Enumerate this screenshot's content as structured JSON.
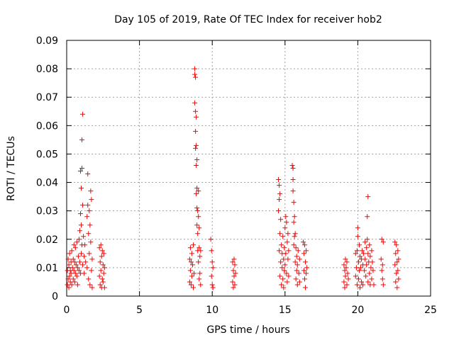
{
  "chart_data": {
    "type": "scatter",
    "title": "Day 105 of 2019, Rate Of TEC Index for receiver hob2",
    "xlabel": "GPS time / hours",
    "ylabel": "ROTI / TECUs",
    "xlim": [
      0,
      25
    ],
    "ylim": [
      0,
      0.09
    ],
    "x_ticks": [
      0,
      5,
      10,
      15,
      20,
      25
    ],
    "y_ticks": [
      0,
      0.01,
      0.02,
      0.03,
      0.04,
      0.05,
      0.06,
      0.07,
      0.08,
      0.09
    ],
    "x_tick_labels": [
      "0",
      "5",
      "10",
      "15",
      "20",
      "25"
    ],
    "y_tick_labels": [
      "0",
      "0.01",
      "0.02",
      "0.03",
      "0.04",
      "0.05",
      "0.06",
      "0.07",
      "0.08",
      "0.09"
    ],
    "grid": true,
    "marker": "+",
    "marker_color": "#ff0000",
    "series": [
      {
        "points": [
          [
            0.05,
            0.004
          ],
          [
            0.05,
            0.009
          ],
          [
            0.1,
            0.013
          ],
          [
            0.1,
            0.006
          ],
          [
            0.15,
            0.011
          ],
          [
            0.15,
            0.003
          ],
          [
            0.2,
            0.007
          ],
          [
            0.2,
            0.015
          ],
          [
            0.25,
            0.009
          ],
          [
            0.25,
            0.005
          ],
          [
            0.3,
            0.012
          ],
          [
            0.3,
            0.008
          ],
          [
            0.35,
            0.016
          ],
          [
            0.35,
            0.004
          ],
          [
            0.4,
            0.01
          ],
          [
            0.45,
            0.013
          ],
          [
            0.45,
            0.006
          ],
          [
            0.5,
            0.018
          ],
          [
            0.5,
            0.009
          ],
          [
            0.55,
            0.012
          ],
          [
            0.55,
            0.005
          ],
          [
            0.6,
            0.017
          ],
          [
            0.6,
            0.008
          ],
          [
            0.65,
            0.011
          ],
          [
            0.7,
            0.019
          ],
          [
            0.7,
            0.007
          ],
          [
            0.75,
            0.01
          ],
          [
            0.75,
            0.004
          ],
          [
            0.8,
            0.014
          ],
          [
            0.85,
            0.02
          ],
          [
            0.85,
            0.009
          ],
          [
            0.9,
            0.023
          ],
          [
            0.9,
            0.012
          ],
          [
            0.95,
            0.029
          ],
          [
            0.95,
            0.008
          ],
          [
            0.95,
            0.044
          ],
          [
            1.0,
            0.038
          ],
          [
            1.0,
            0.015
          ],
          [
            1.0,
            0.025
          ],
          [
            1.05,
            0.045
          ],
          [
            1.05,
            0.055
          ],
          [
            1.05,
            0.018
          ],
          [
            1.1,
            0.064
          ],
          [
            1.1,
            0.032
          ],
          [
            1.1,
            0.011
          ],
          [
            1.15,
            0.021
          ],
          [
            1.2,
            0.014
          ],
          [
            1.2,
            0.008
          ],
          [
            1.25,
            0.018
          ],
          [
            1.3,
            0.012
          ],
          [
            1.4,
            0.028
          ],
          [
            1.4,
            0.01
          ],
          [
            1.45,
            0.043
          ],
          [
            1.45,
            0.032
          ],
          [
            1.5,
            0.022
          ],
          [
            1.5,
            0.006
          ],
          [
            1.55,
            0.03
          ],
          [
            1.55,
            0.015
          ],
          [
            1.6,
            0.025
          ],
          [
            1.6,
            0.004
          ],
          [
            1.65,
            0.037
          ],
          [
            1.65,
            0.019
          ],
          [
            1.7,
            0.034
          ],
          [
            1.7,
            0.009
          ],
          [
            1.75,
            0.013
          ],
          [
            1.75,
            0.003
          ],
          [
            2.25,
            0.017
          ],
          [
            2.25,
            0.007
          ],
          [
            2.3,
            0.012
          ],
          [
            2.3,
            0.004
          ],
          [
            2.35,
            0.018
          ],
          [
            2.35,
            0.009
          ],
          [
            2.4,
            0.014
          ],
          [
            2.4,
            0.003
          ],
          [
            2.45,
            0.016
          ],
          [
            2.45,
            0.006
          ],
          [
            2.5,
            0.011
          ],
          [
            2.5,
            0.005
          ],
          [
            2.55,
            0.015
          ],
          [
            2.55,
            0.008
          ],
          [
            2.6,
            0.01
          ],
          [
            2.6,
            0.003
          ],
          [
            8.45,
            0.013
          ],
          [
            8.45,
            0.005
          ],
          [
            8.5,
            0.017
          ],
          [
            8.5,
            0.009
          ],
          [
            8.55,
            0.012
          ],
          [
            8.55,
            0.004
          ],
          [
            8.6,
            0.015
          ],
          [
            8.6,
            0.007
          ],
          [
            8.65,
            0.011
          ],
          [
            8.7,
            0.018
          ],
          [
            8.7,
            0.003
          ],
          [
            8.75,
            0.008
          ],
          [
            8.8,
            0.08
          ],
          [
            8.8,
            0.078
          ],
          [
            8.8,
            0.068
          ],
          [
            8.85,
            0.077
          ],
          [
            8.85,
            0.065
          ],
          [
            8.85,
            0.058
          ],
          [
            8.85,
            0.052
          ],
          [
            8.9,
            0.063
          ],
          [
            8.9,
            0.053
          ],
          [
            8.9,
            0.046
          ],
          [
            8.9,
            0.036
          ],
          [
            8.95,
            0.048
          ],
          [
            8.95,
            0.038
          ],
          [
            8.95,
            0.031
          ],
          [
            8.95,
            0.025
          ],
          [
            9.0,
            0.03
          ],
          [
            9.0,
            0.022
          ],
          [
            9.0,
            0.016
          ],
          [
            9.05,
            0.037
          ],
          [
            9.05,
            0.028
          ],
          [
            9.05,
            0.012
          ],
          [
            9.1,
            0.024
          ],
          [
            9.1,
            0.017
          ],
          [
            9.1,
            0.006
          ],
          [
            9.15,
            0.014
          ],
          [
            9.15,
            0.008
          ],
          [
            9.2,
            0.016
          ],
          [
            9.2,
            0.004
          ],
          [
            9.9,
            0.02
          ],
          [
            9.95,
            0.016
          ],
          [
            9.95,
            0.007
          ],
          [
            10.0,
            0.012
          ],
          [
            10.0,
            0.004
          ],
          [
            10.05,
            0.01
          ],
          [
            10.05,
            0.003
          ],
          [
            11.4,
            0.012
          ],
          [
            11.4,
            0.005
          ],
          [
            11.45,
            0.009
          ],
          [
            11.45,
            0.003
          ],
          [
            11.5,
            0.013
          ],
          [
            11.5,
            0.007
          ],
          [
            11.55,
            0.011
          ],
          [
            11.55,
            0.004
          ],
          [
            11.6,
            0.008
          ],
          [
            14.55,
            0.041
          ],
          [
            14.55,
            0.03
          ],
          [
            14.6,
            0.039
          ],
          [
            14.6,
            0.034
          ],
          [
            14.6,
            0.016
          ],
          [
            14.65,
            0.036
          ],
          [
            14.65,
            0.022
          ],
          [
            14.65,
            0.007
          ],
          [
            14.7,
            0.027
          ],
          [
            14.7,
            0.012
          ],
          [
            14.75,
            0.018
          ],
          [
            14.75,
            0.004
          ],
          [
            14.8,
            0.01
          ],
          [
            14.8,
            0.015
          ],
          [
            14.85,
            0.021
          ],
          [
            14.85,
            0.006
          ],
          [
            14.9,
            0.013
          ],
          [
            14.9,
            0.003
          ],
          [
            14.95,
            0.017
          ],
          [
            14.95,
            0.009
          ],
          [
            15.0,
            0.024
          ],
          [
            15.0,
            0.011
          ],
          [
            15.05,
            0.028
          ],
          [
            15.05,
            0.015
          ],
          [
            15.1,
            0.026
          ],
          [
            15.1,
            0.008
          ],
          [
            15.15,
            0.019
          ],
          [
            15.15,
            0.005
          ],
          [
            15.2,
            0.022
          ],
          [
            15.2,
            0.013
          ],
          [
            15.25,
            0.016
          ],
          [
            15.25,
            0.007
          ],
          [
            15.5,
            0.046
          ],
          [
            15.55,
            0.045
          ],
          [
            15.55,
            0.041
          ],
          [
            15.6,
            0.033
          ],
          [
            15.55,
            0.037
          ],
          [
            15.6,
            0.026
          ],
          [
            15.6,
            0.018
          ],
          [
            15.65,
            0.028
          ],
          [
            15.65,
            0.021
          ],
          [
            15.7,
            0.022
          ],
          [
            15.7,
            0.012
          ],
          [
            15.75,
            0.017
          ],
          [
            15.75,
            0.006
          ],
          [
            15.8,
            0.014
          ],
          [
            15.8,
            0.009
          ],
          [
            15.85,
            0.011
          ],
          [
            15.85,
            0.004
          ],
          [
            15.9,
            0.016
          ],
          [
            15.95,
            0.008
          ],
          [
            16.0,
            0.013
          ],
          [
            16.0,
            0.005
          ],
          [
            16.25,
            0.019
          ],
          [
            16.3,
            0.015
          ],
          [
            16.3,
            0.009
          ],
          [
            16.35,
            0.018
          ],
          [
            16.35,
            0.006
          ],
          [
            16.4,
            0.012
          ],
          [
            16.4,
            0.003
          ],
          [
            16.45,
            0.016
          ],
          [
            16.45,
            0.008
          ],
          [
            16.5,
            0.01
          ],
          [
            19.05,
            0.011
          ],
          [
            19.05,
            0.005
          ],
          [
            19.1,
            0.009
          ],
          [
            19.1,
            0.003
          ],
          [
            19.15,
            0.013
          ],
          [
            19.15,
            0.007
          ],
          [
            19.2,
            0.01
          ],
          [
            19.25,
            0.012
          ],
          [
            19.25,
            0.004
          ],
          [
            19.3,
            0.008
          ],
          [
            19.35,
            0.006
          ],
          [
            19.85,
            0.015
          ],
          [
            19.85,
            0.007
          ],
          [
            19.9,
            0.01
          ],
          [
            19.95,
            0.016
          ],
          [
            19.95,
            0.004
          ],
          [
            20.0,
            0.024
          ],
          [
            20.0,
            0.021
          ],
          [
            20.05,
            0.012
          ],
          [
            20.05,
            0.006
          ],
          [
            20.1,
            0.018
          ],
          [
            20.1,
            0.009
          ],
          [
            20.15,
            0.014
          ],
          [
            20.15,
            0.003
          ],
          [
            20.2,
            0.01
          ],
          [
            20.25,
            0.013
          ],
          [
            20.25,
            0.005
          ],
          [
            20.3,
            0.016
          ],
          [
            20.35,
            0.011
          ],
          [
            20.35,
            0.004
          ],
          [
            20.4,
            0.015
          ],
          [
            20.45,
            0.009
          ],
          [
            20.5,
            0.019
          ],
          [
            20.5,
            0.013
          ],
          [
            20.55,
            0.007
          ],
          [
            20.6,
            0.017
          ],
          [
            20.6,
            0.011
          ],
          [
            20.65,
            0.02
          ],
          [
            20.65,
            0.028
          ],
          [
            20.7,
            0.035
          ],
          [
            20.7,
            0.015
          ],
          [
            20.7,
            0.005
          ],
          [
            20.75,
            0.012
          ],
          [
            20.8,
            0.018
          ],
          [
            20.8,
            0.008
          ],
          [
            20.85,
            0.014
          ],
          [
            20.85,
            0.004
          ],
          [
            20.9,
            0.01
          ],
          [
            20.95,
            0.016
          ],
          [
            20.95,
            0.006
          ],
          [
            21.0,
            0.012
          ],
          [
            21.05,
            0.009
          ],
          [
            21.1,
            0.004
          ],
          [
            21.6,
            0.013
          ],
          [
            21.65,
            0.02
          ],
          [
            21.65,
            0.009
          ],
          [
            21.7,
            0.006
          ],
          [
            21.7,
            0.011
          ],
          [
            21.75,
            0.004
          ],
          [
            21.75,
            0.019
          ],
          [
            22.55,
            0.019
          ],
          [
            22.55,
            0.011
          ],
          [
            22.6,
            0.015
          ],
          [
            22.6,
            0.005
          ],
          [
            22.65,
            0.018
          ],
          [
            22.65,
            0.008
          ],
          [
            22.7,
            0.012
          ],
          [
            22.7,
            0.003
          ],
          [
            22.75,
            0.016
          ],
          [
            22.75,
            0.009
          ],
          [
            22.8,
            0.013
          ],
          [
            22.8,
            0.006
          ]
        ]
      }
    ]
  }
}
